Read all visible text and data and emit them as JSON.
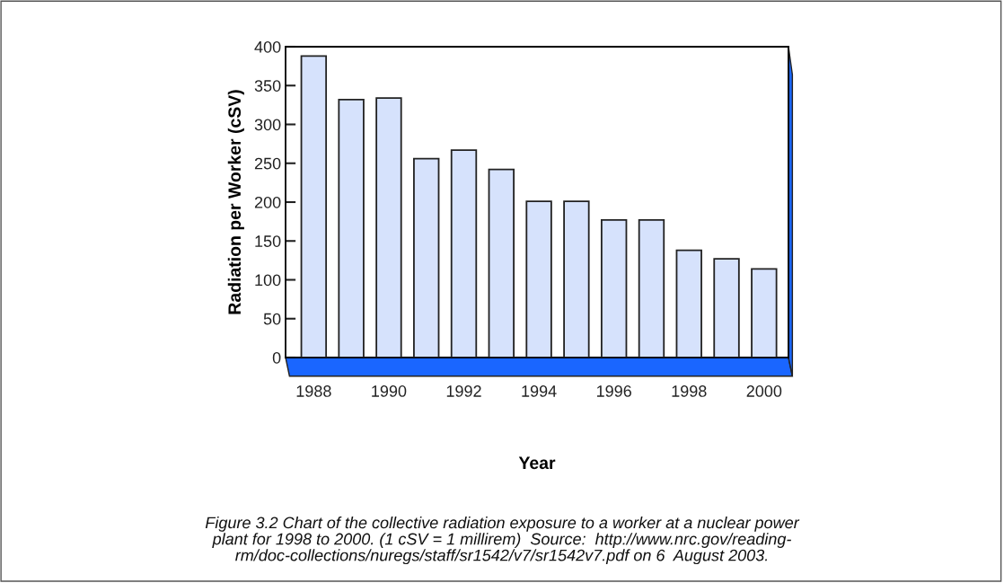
{
  "chart_data": {
    "type": "bar",
    "xlabel": "Year",
    "ylabel": "Radiation per Worker (cSV)",
    "categories": [
      "1988",
      null,
      "1990",
      null,
      "1992",
      null,
      "1994",
      null,
      "1996",
      null,
      "1998",
      null,
      "2000"
    ],
    "values": [
      388,
      332,
      334,
      256,
      267,
      242,
      201,
      201,
      177,
      177,
      138,
      127,
      114
    ],
    "color": "#d6e2fc",
    "ylim": [
      0,
      400
    ],
    "yticks": [
      0,
      50,
      100,
      150,
      200,
      250,
      300,
      350,
      400
    ],
    "grid": false,
    "legend": false,
    "annotations": [
      "Figure 3.2 Chart of the collective radiation exposure to a worker at a nuclear power\nplant for 1998 to 2000. (1 cSV = 1 millirem)  Source:  http://www.nrc.gov/reading-\nrm/doc-collections/nuregs/staff/sr1542/v7/sr1542v7.pdf on 6  August 2003."
    ]
  }
}
